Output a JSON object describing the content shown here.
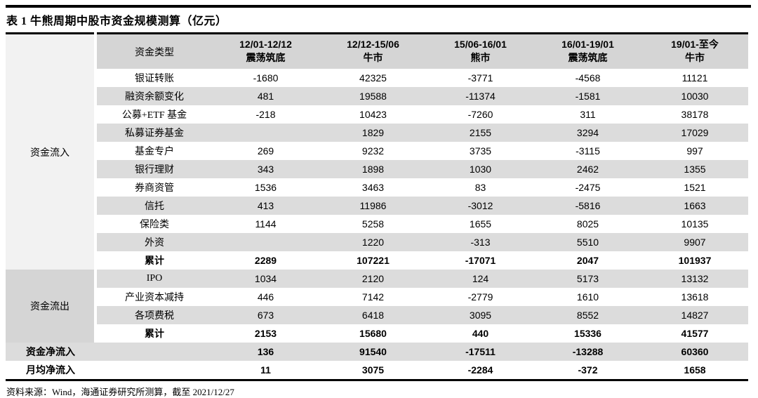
{
  "page": {
    "title": "表 1 牛熊周期中股市资金规模测算（亿元）",
    "source": "资料来源：Wind，海通证券研究所测算，截至 2021/12/27"
  },
  "colors": {
    "header_bg": "#d5d5d5",
    "stripe_bg": "#dcdcdc",
    "inflow_group_bg": "#f2f2f2",
    "outflow_group_bg": "#d5d5d5",
    "rule_color": "#000000"
  },
  "table": {
    "type_header": "资金类型",
    "period_headers": [
      {
        "range": "12/01-12/12",
        "phase": "震荡筑底"
      },
      {
        "range": "12/12-15/06",
        "phase": "牛市"
      },
      {
        "range": "15/06-16/01",
        "phase": "熊市"
      },
      {
        "range": "16/01-19/01",
        "phase": "震荡筑底"
      },
      {
        "range": "19/01-至今",
        "phase": "牛市"
      }
    ],
    "sections": [
      {
        "group": "资金流入",
        "rows": [
          {
            "type": "银证转账",
            "bold": false,
            "values": [
              "-1680",
              "42325",
              "-3771",
              "-4568",
              "11121"
            ]
          },
          {
            "type": "融资余额变化",
            "bold": false,
            "values": [
              "481",
              "19588",
              "-11374",
              "-1581",
              "10030"
            ]
          },
          {
            "type": "公募+ETF 基金",
            "bold": false,
            "values": [
              "-218",
              "10423",
              "-7260",
              "311",
              "38178"
            ]
          },
          {
            "type": "私募证券基金",
            "bold": false,
            "values": [
              "",
              "1829",
              "2155",
              "3294",
              "17029"
            ]
          },
          {
            "type": "基金专户",
            "bold": false,
            "values": [
              "269",
              "9232",
              "3735",
              "-3115",
              "997"
            ]
          },
          {
            "type": "银行理财",
            "bold": false,
            "values": [
              "343",
              "1898",
              "1030",
              "2462",
              "1355"
            ]
          },
          {
            "type": "券商资管",
            "bold": false,
            "values": [
              "1536",
              "3463",
              "83",
              "-2475",
              "1521"
            ]
          },
          {
            "type": "信托",
            "bold": false,
            "values": [
              "413",
              "11986",
              "-3012",
              "-5816",
              "1663"
            ]
          },
          {
            "type": "保险类",
            "bold": false,
            "values": [
              "1144",
              "5258",
              "1655",
              "8025",
              "10135"
            ]
          },
          {
            "type": "外资",
            "bold": false,
            "values": [
              "",
              "1220",
              "-313",
              "5510",
              "9907"
            ]
          },
          {
            "type": "累计",
            "bold": true,
            "values": [
              "2289",
              "107221",
              "-17071",
              "2047",
              "101937"
            ]
          }
        ]
      },
      {
        "group": "资金流出",
        "rows": [
          {
            "type": "IPO",
            "bold": false,
            "values": [
              "1034",
              "2120",
              "124",
              "5173",
              "13132"
            ]
          },
          {
            "type": "产业资本减持",
            "bold": false,
            "values": [
              "446",
              "7142",
              "-2779",
              "1610",
              "13618"
            ]
          },
          {
            "type": "各项费税",
            "bold": false,
            "values": [
              "673",
              "6418",
              "3095",
              "8552",
              "14827"
            ]
          },
          {
            "type": "累计",
            "bold": true,
            "values": [
              "2153",
              "15680",
              "440",
              "15336",
              "41577"
            ]
          }
        ]
      }
    ],
    "summary_rows": [
      {
        "label": "资金净流入",
        "values": [
          "136",
          "91540",
          "-17511",
          "-13288",
          "60360"
        ]
      },
      {
        "label": "月均净流入",
        "values": [
          "11",
          "3075",
          "-2284",
          "-372",
          "1658"
        ]
      }
    ]
  }
}
